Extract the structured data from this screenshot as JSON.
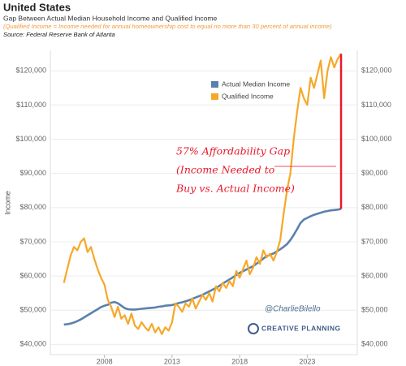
{
  "chart_data": {
    "type": "line",
    "title": "United States",
    "subtitle": "Gap Between Actual Median Household Income and Qualified Income",
    "note": "(Qualified Income = Income needed for annual homeownership cost to equal no more than 30 percent of annual income)",
    "source": "Source: Federal Reserve Bank of Atlanta",
    "y_label": "Income",
    "annotation": [
      "57% Affordability Gap",
      "(Income Needed to",
      "Buy vs. Actual Income)"
    ],
    "annotation_color": "#e8192c",
    "watermark": "@CharlieBilello",
    "logo_text": "CREATIVE PLANNING",
    "legend": "top",
    "grid": true,
    "xlim": [
      2004,
      2026.7
    ],
    "xticks": [
      2008,
      2013,
      2018,
      2023
    ],
    "ylim": [
      37000,
      126000
    ],
    "yticks": [
      {
        "value": 40000,
        "label": "$40,000"
      },
      {
        "value": 50000,
        "label": "$50,000"
      },
      {
        "value": 60000,
        "label": "$60,000"
      },
      {
        "value": 70000,
        "label": "$70,000"
      },
      {
        "value": 80000,
        "label": "$80,000"
      },
      {
        "value": 90000,
        "label": "$90,000"
      },
      {
        "value": 100000,
        "label": "$100,000"
      },
      {
        "value": 110000,
        "label": "$110,000"
      },
      {
        "value": 120000,
        "label": "$120,000"
      }
    ],
    "x": [
      2005,
      2005.25,
      2005.5,
      2005.75,
      2006,
      2006.25,
      2006.5,
      2006.75,
      2007,
      2007.25,
      2007.5,
      2007.75,
      2008,
      2008.25,
      2008.5,
      2008.75,
      2009,
      2009.25,
      2009.5,
      2009.75,
      2010,
      2010.25,
      2010.5,
      2010.75,
      2011,
      2011.25,
      2011.5,
      2011.75,
      2012,
      2012.25,
      2012.5,
      2012.75,
      2013,
      2013.25,
      2013.5,
      2013.75,
      2014,
      2014.25,
      2014.5,
      2014.75,
      2015,
      2015.25,
      2015.5,
      2015.75,
      2016,
      2016.25,
      2016.5,
      2016.75,
      2017,
      2017.25,
      2017.5,
      2017.75,
      2018,
      2018.25,
      2018.5,
      2018.75,
      2019,
      2019.25,
      2019.5,
      2019.75,
      2020,
      2020.25,
      2020.5,
      2020.75,
      2021,
      2021.25,
      2021.5,
      2021.75,
      2022,
      2022.25,
      2022.5,
      2022.75,
      2023,
      2023.25,
      2023.5,
      2023.75,
      2024,
      2024.25,
      2024.5,
      2024.75,
      2025,
      2025.25,
      2025.5
    ],
    "series": [
      {
        "name": "Actual Median Income",
        "color": "#5b80ae",
        "values": [
          45800,
          45900,
          46100,
          46400,
          46800,
          47300,
          47900,
          48500,
          49100,
          49700,
          50300,
          50900,
          51300,
          51600,
          52200,
          52400,
          52000,
          51300,
          50600,
          50300,
          50200,
          50200,
          50300,
          50400,
          50500,
          50600,
          50700,
          50800,
          51000,
          51100,
          51300,
          51400,
          51500,
          51800,
          52100,
          52300,
          52600,
          52900,
          53300,
          53700,
          54100,
          54500,
          55000,
          55500,
          56000,
          56500,
          57100,
          57800,
          58400,
          59000,
          59600,
          60300,
          60900,
          61400,
          61900,
          62400,
          62900,
          63600,
          64300,
          65100,
          65800,
          66200,
          66600,
          67200,
          67800,
          68500,
          69300,
          70500,
          72000,
          73700,
          75500,
          76500,
          77000,
          77500,
          77900,
          78200,
          78500,
          78800,
          79000,
          79200,
          79300,
          79400,
          79600
        ]
      },
      {
        "name": "Qualified Income",
        "color": "#f6a829",
        "values": [
          58000,
          62000,
          66000,
          68500,
          67500,
          70000,
          71000,
          67000,
          68500,
          65000,
          62000,
          59500,
          57500,
          53000,
          51000,
          48000,
          51000,
          47500,
          48500,
          46000,
          49000,
          45500,
          44500,
          46500,
          45000,
          44000,
          46000,
          43500,
          45000,
          43000,
          45000,
          44000,
          46500,
          52000,
          51000,
          49500,
          52000,
          51000,
          53500,
          50500,
          52500,
          54500,
          53000,
          55000,
          52500,
          57000,
          55500,
          58000,
          56500,
          58500,
          57000,
          61500,
          59500,
          62000,
          64500,
          60500,
          62500,
          65500,
          63500,
          67500,
          65500,
          66500,
          64500,
          67000,
          70500,
          78000,
          85000,
          90000,
          100000,
          108000,
          115000,
          112000,
          110000,
          118000,
          115000,
          119000,
          123000,
          112000,
          120000,
          124000,
          121000,
          123500,
          125000
        ]
      }
    ]
  }
}
